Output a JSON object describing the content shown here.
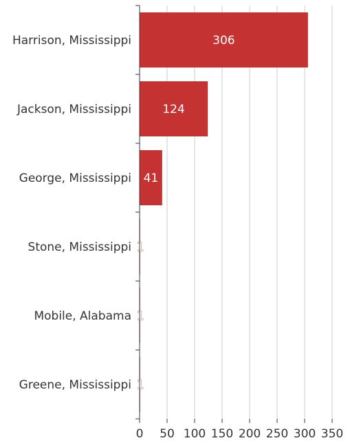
{
  "chart_data": {
    "type": "bar",
    "orientation": "horizontal",
    "categories": [
      "Harrison, Mississippi",
      "Jackson, Mississippi",
      "George, Mississippi",
      "Stone, Mississippi",
      "Mobile, Alabama",
      "Greene, Mississippi"
    ],
    "values": [
      306,
      124,
      41,
      1,
      1,
      1
    ],
    "title": "",
    "xlabel": "",
    "ylabel": "",
    "xlim": [
      0,
      350
    ],
    "xticks": [
      0,
      50,
      100,
      150,
      200,
      250,
      300,
      350
    ],
    "grid": true,
    "legend": "none",
    "bar_color": "#c43232"
  }
}
